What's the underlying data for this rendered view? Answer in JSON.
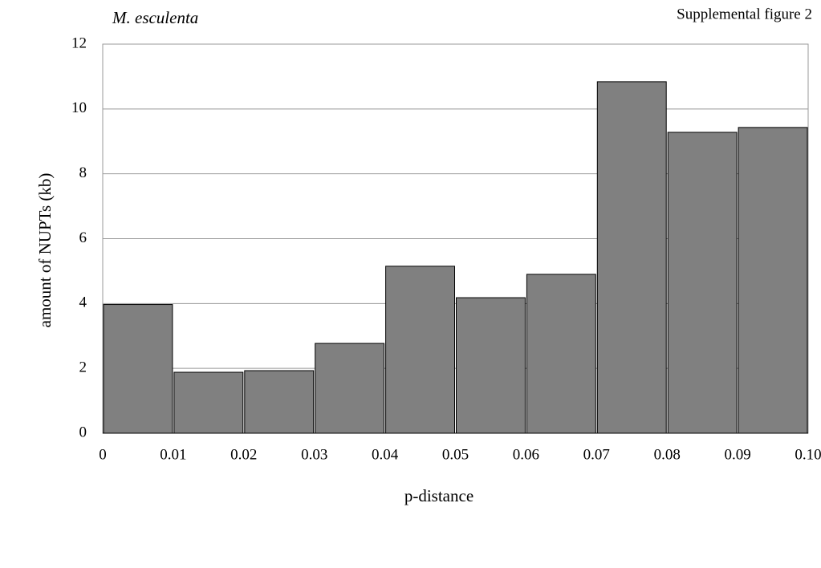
{
  "chart_data": {
    "type": "histogram",
    "title": "M. esculenta",
    "figure_label": "Supplemental figure 2",
    "x_label": "p-distance",
    "y_label": "amount of NUPTs (kb)",
    "bins": [
      0,
      0.01,
      0.02,
      0.03,
      0.04,
      0.05,
      0.06,
      0.07,
      0.08,
      0.09,
      0.1
    ],
    "values": [
      3.97,
      1.88,
      1.93,
      2.77,
      5.15,
      4.18,
      4.9,
      10.84,
      9.28,
      9.43
    ],
    "color": "#808080",
    "xlim": [
      0,
      0.1
    ],
    "xticks": [
      0,
      0.01,
      0.02,
      0.03,
      0.04,
      0.05,
      0.06,
      0.07,
      0.08,
      0.09,
      {
        "value": 0.1,
        "label": "0.10"
      }
    ],
    "ylim": [
      0,
      12
    ],
    "yticks": [
      0,
      2,
      4,
      6,
      8,
      10,
      12
    ],
    "grid": true
  }
}
